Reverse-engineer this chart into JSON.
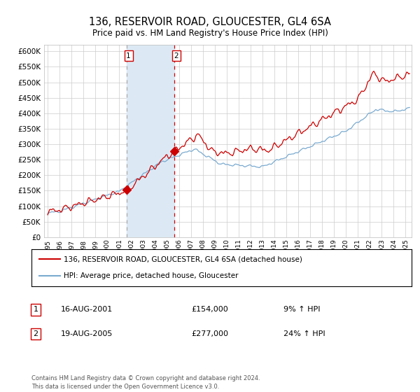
{
  "title": "136, RESERVOIR ROAD, GLOUCESTER, GL4 6SA",
  "subtitle": "Price paid vs. HM Land Registry's House Price Index (HPI)",
  "legend_line1": "136, RESERVOIR ROAD, GLOUCESTER, GL4 6SA (detached house)",
  "legend_line2": "HPI: Average price, detached house, Gloucester",
  "annotation1_date": "16-AUG-2001",
  "annotation1_price": "£154,000",
  "annotation1_hpi": "9% ↑ HPI",
  "annotation2_date": "19-AUG-2005",
  "annotation2_price": "£277,000",
  "annotation2_hpi": "24% ↑ HPI",
  "footer": "Contains HM Land Registry data © Crown copyright and database right 2024.\nThis data is licensed under the Open Government Licence v3.0.",
  "red_line_color": "#cc0000",
  "blue_line_color": "#7aaad0",
  "background_color": "#ffffff",
  "grid_color": "#cccccc",
  "shade_color": "#dce9f5",
  "dashed_line1_color": "#aaaaaa",
  "dashed_line2_color": "#cc0000",
  "ylim": [
    0,
    620000
  ],
  "yticks": [
    0,
    50000,
    100000,
    150000,
    200000,
    250000,
    300000,
    350000,
    400000,
    450000,
    500000,
    550000,
    600000
  ],
  "sale1_year": 2001.625,
  "sale1_value": 154000,
  "sale2_year": 2005.625,
  "sale2_value": 277000,
  "xstart": 1995,
  "xend": 2025.5
}
